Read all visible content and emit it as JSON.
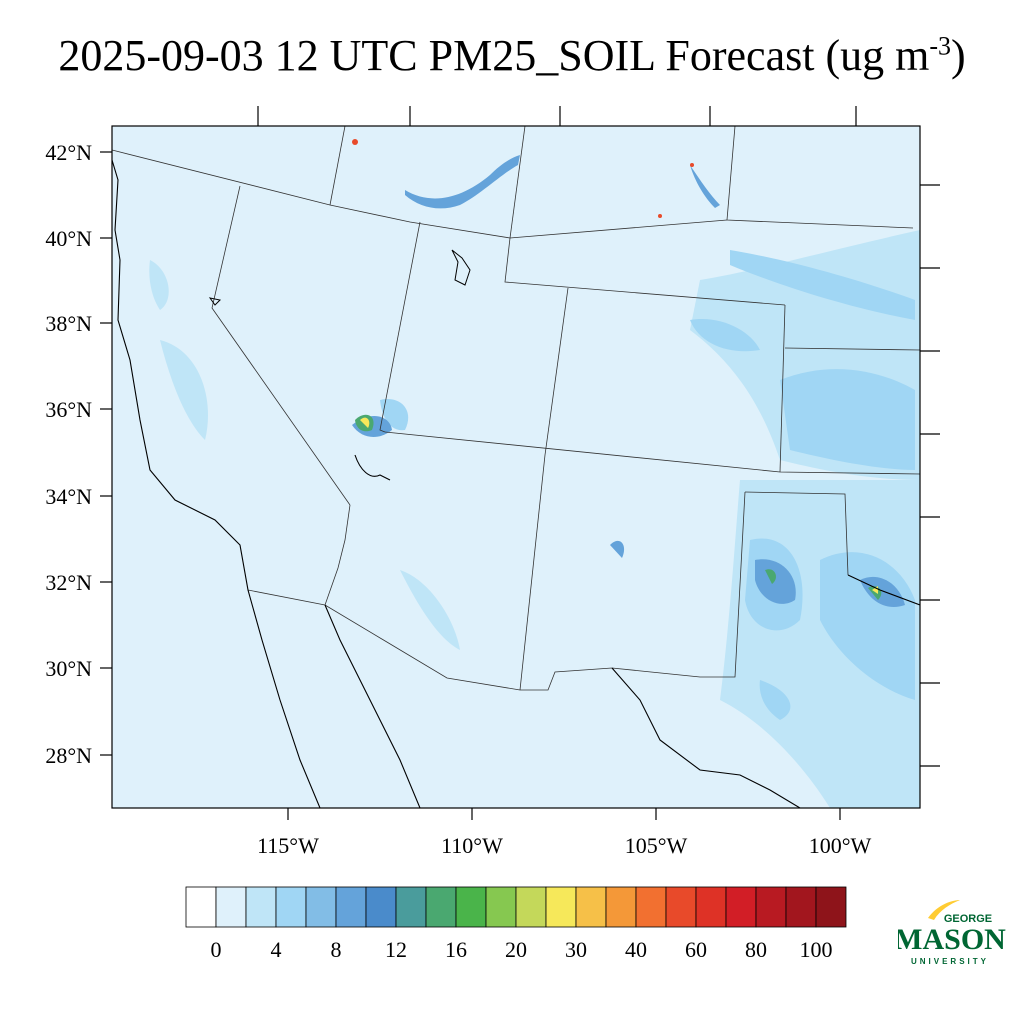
{
  "title": {
    "main": "2025-09-03 12 UTC PM25_SOIL Forecast (ug m",
    "exp": "-3",
    "close": ")"
  },
  "map": {
    "lat_labels": [
      "42°N",
      "40°N",
      "38°N",
      "36°N",
      "34°N",
      "32°N",
      "30°N",
      "28°N"
    ],
    "lon_labels": [
      "115°W",
      "110°W",
      "105°W",
      "100°W"
    ],
    "background_color": "#dff1fb"
  },
  "colorbar": {
    "labels": [
      "0",
      "4",
      "8",
      "12",
      "16",
      "20",
      "30",
      "40",
      "60",
      "80",
      "100"
    ],
    "colors": [
      "#ffffff",
      "#dff1fb",
      "#bfe5f7",
      "#a0d6f4",
      "#82bde6",
      "#64a3da",
      "#4a8bcb",
      "#4a9c9c",
      "#4aa870",
      "#4ab44a",
      "#86c850",
      "#c4d85a",
      "#f6e85a",
      "#f6c048",
      "#f49838",
      "#f27030",
      "#e84a2a",
      "#de3226",
      "#d21e26",
      "#b81a22",
      "#a2161e",
      "#8e141a"
    ]
  },
  "logo": {
    "top": "GEORGE",
    "name": "MASON",
    "bottom": "UNIVERSITY",
    "color": "#006633",
    "accent": "#ffcc33"
  }
}
